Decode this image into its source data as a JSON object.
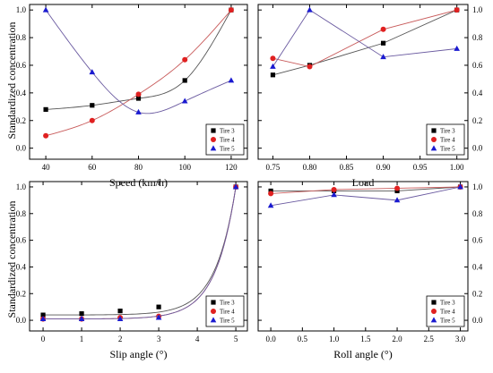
{
  "figure": {
    "ylabel_top": "Standardized concentration",
    "ylabel_bottom": "Standardized concentration"
  },
  "series_styles": [
    {
      "name": "Tire 3",
      "marker": "square",
      "color": "#000000",
      "curve_color": "#555555"
    },
    {
      "name": "Tire 4",
      "marker": "circle",
      "color": "#e02020",
      "curve_color": "#c85a5a"
    },
    {
      "name": "Tire 5",
      "marker": "triangle",
      "color": "#1a1ad0",
      "curve_color": "#6a5aa0"
    }
  ],
  "chart_data": [
    {
      "type": "scatter",
      "xlabel": "Speed (km/h)",
      "ylabel": "Standardized concentration",
      "xlim": [
        33,
        127
      ],
      "ylim": [
        -0.08,
        1.04
      ],
      "xticks": [
        40,
        60,
        80,
        100,
        120
      ],
      "xtick_labels": [
        "40",
        "60",
        "80",
        "100",
        "120"
      ],
      "yticks": [
        0.0,
        0.2,
        0.4,
        0.6,
        0.8,
        1.0
      ],
      "ytick_labels": [
        "0.0",
        "0.2",
        "0.4",
        "0.6",
        "0.8",
        "1.0"
      ],
      "ytick_side": "left",
      "legend": "bottom-right",
      "trend": "smooth",
      "series": [
        {
          "name": "Tire 3",
          "x": [
            40,
            60,
            80,
            100,
            120
          ],
          "y": [
            0.28,
            0.31,
            0.36,
            0.49,
            1.0
          ]
        },
        {
          "name": "Tire 4",
          "x": [
            40,
            60,
            80,
            100,
            120
          ],
          "y": [
            0.09,
            0.2,
            0.39,
            0.64,
            1.0
          ]
        },
        {
          "name": "Tire 5",
          "x": [
            40,
            60,
            80,
            100,
            120
          ],
          "y": [
            1.0,
            0.55,
            0.26,
            0.34,
            0.49
          ]
        }
      ]
    },
    {
      "type": "line",
      "xlabel": "Load",
      "ylabel": "",
      "xlim": [
        0.73,
        1.015
      ],
      "ylim": [
        -0.08,
        1.04
      ],
      "xticks": [
        0.75,
        0.8,
        0.85,
        0.9,
        0.95,
        1.0
      ],
      "xtick_labels": [
        "0.75",
        "0.80",
        "0.85",
        "0.90",
        "0.95",
        "1.00"
      ],
      "yticks": [
        0.0,
        0.2,
        0.4,
        0.6,
        0.8,
        1.0
      ],
      "ytick_labels": [
        "0.0",
        "0.2",
        "0.4",
        "0.6",
        "0.8",
        "1.0"
      ],
      "ytick_side": "right",
      "legend": "bottom-right",
      "trend": "linear",
      "series": [
        {
          "name": "Tire 3",
          "x": [
            0.75,
            0.8,
            0.9,
            1.0
          ],
          "y": [
            0.53,
            0.6,
            0.76,
            1.0
          ]
        },
        {
          "name": "Tire 4",
          "x": [
            0.75,
            0.8,
            0.9,
            1.0
          ],
          "y": [
            0.65,
            0.59,
            0.86,
            1.0
          ]
        },
        {
          "name": "Tire 5",
          "x": [
            0.75,
            0.8,
            0.9,
            1.0
          ],
          "y": [
            0.59,
            1.0,
            0.66,
            0.72
          ]
        }
      ]
    },
    {
      "type": "scatter",
      "xlabel": "Slip angle (°)",
      "ylabel": "Standardized concentration",
      "xlim": [
        -0.35,
        5.3
      ],
      "ylim": [
        -0.08,
        1.04
      ],
      "xticks": [
        0,
        1,
        2,
        3,
        4,
        5
      ],
      "xtick_labels": [
        "0",
        "1",
        "2",
        "3",
        "4",
        "5"
      ],
      "yticks": [
        0.0,
        0.2,
        0.4,
        0.6,
        0.8,
        1.0
      ],
      "ytick_labels": [
        "0.0",
        "0.2",
        "0.4",
        "0.6",
        "0.8",
        "1.0"
      ],
      "ytick_side": "left",
      "legend": "bottom-right",
      "trend": "exponential",
      "series": [
        {
          "name": "Tire 3",
          "x": [
            0,
            1,
            2,
            3,
            5
          ],
          "y": [
            0.04,
            0.05,
            0.07,
            0.1,
            1.0
          ]
        },
        {
          "name": "Tire 4",
          "x": [
            0,
            1,
            2,
            3,
            5
          ],
          "y": [
            0.01,
            0.01,
            0.02,
            0.03,
            1.0
          ]
        },
        {
          "name": "Tire 5",
          "x": [
            0,
            1,
            2,
            3,
            5
          ],
          "y": [
            0.01,
            0.01,
            0.01,
            0.02,
            1.0
          ]
        }
      ]
    },
    {
      "type": "line",
      "xlabel": "Roll angle (°)",
      "ylabel": "",
      "xlim": [
        -0.2,
        3.12
      ],
      "ylim": [
        -0.08,
        1.04
      ],
      "xticks": [
        0.0,
        0.5,
        1.0,
        1.5,
        2.0,
        2.5,
        3.0
      ],
      "xtick_labels": [
        "0.0",
        "0.5",
        "1.0",
        "1.5",
        "2.0",
        "2.5",
        "3.0"
      ],
      "yticks": [
        0.0,
        0.2,
        0.4,
        0.6,
        0.8,
        1.0
      ],
      "ytick_labels": [
        "0.0",
        "0.2",
        "0.4",
        "0.6",
        "0.8",
        "1.0"
      ],
      "ytick_side": "right",
      "legend": "bottom-right",
      "trend": "linear",
      "series": [
        {
          "name": "Tire 3",
          "x": [
            0,
            1,
            2,
            3
          ],
          "y": [
            0.97,
            0.97,
            0.97,
            1.0
          ]
        },
        {
          "name": "Tire 4",
          "x": [
            0,
            1,
            2,
            3
          ],
          "y": [
            0.95,
            0.98,
            0.99,
            1.0
          ]
        },
        {
          "name": "Tire 5",
          "x": [
            0,
            1,
            2,
            3
          ],
          "y": [
            0.86,
            0.94,
            0.9,
            1.0
          ]
        }
      ]
    }
  ]
}
